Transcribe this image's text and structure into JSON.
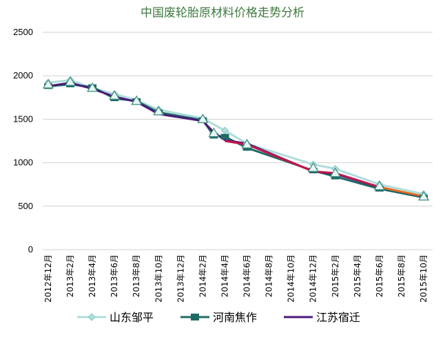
{
  "chart_data": {
    "type": "line",
    "title": "中国废轮胎原材料价格走势分析",
    "xlabel": "",
    "ylabel": "",
    "ylim": [
      0,
      2500
    ],
    "yticks": [
      0,
      500,
      1000,
      1500,
      2000,
      2500
    ],
    "grid": true,
    "legend_position": "bottom",
    "x_tick_labels": [
      "2012年12月",
      "2013年2月",
      "2013年4月",
      "2013年6月",
      "2013年8月",
      "2013年10月",
      "2013年12月",
      "2014年2月",
      "2014年4月",
      "2014年6月",
      "2014年8月",
      "2014年10月",
      "2014年12月",
      "2015年2月",
      "2015年4月",
      "2015年6月",
      "2015年8月",
      "2015年10月"
    ],
    "series": [
      {
        "name": "山东邹平",
        "color": "#b0dcdc",
        "marker": "diamond",
        "points": [
          {
            "m": 0,
            "y": 1920
          },
          {
            "m": 1,
            "y": 1950
          },
          {
            "m": 2,
            "y": 1860
          },
          {
            "m": 3,
            "y": 1790
          },
          {
            "m": 4,
            "y": 1720
          },
          {
            "m": 5,
            "y": 1610
          },
          {
            "m": 7,
            "y": 1510
          },
          {
            "m": 8,
            "y": 1370
          },
          {
            "m": 9,
            "y": 1220
          },
          {
            "m": 12,
            "y": 980
          },
          {
            "m": 13,
            "y": 930
          },
          {
            "m": 15,
            "y": 750
          },
          {
            "m": 17,
            "y": 640
          }
        ]
      },
      {
        "name": "河南焦作",
        "color": "#1f6b66",
        "marker": "square",
        "points": [
          {
            "m": 0,
            "y": 1880
          },
          {
            "m": 1,
            "y": 1900
          },
          {
            "m": 2,
            "y": 1870
          },
          {
            "m": 3,
            "y": 1740
          },
          {
            "m": 4,
            "y": 1710
          },
          {
            "m": 5,
            "y": 1580
          },
          {
            "m": 7,
            "y": 1490
          },
          {
            "m": 7.5,
            "y": 1310
          },
          {
            "m": 8,
            "y": 1300
          },
          {
            "m": 9,
            "y": 1170
          },
          {
            "m": 12,
            "y": 910
          },
          {
            "m": 13,
            "y": 840
          },
          {
            "m": 15,
            "y": 700
          },
          {
            "m": 17,
            "y": 600
          }
        ]
      },
      {
        "name": "江苏宿迁",
        "color": "#4b1a7a",
        "marker": "dash",
        "points": [
          {
            "m": 0,
            "y": 1880
          },
          {
            "m": 1,
            "y": 1920
          },
          {
            "m": 2,
            "y": 1850
          },
          {
            "m": 3,
            "y": 1760
          },
          {
            "m": 4,
            "y": 1700
          },
          {
            "m": 5,
            "y": 1560
          },
          {
            "m": 7,
            "y": 1480
          },
          {
            "m": 7.5,
            "y": 1350
          },
          {
            "m": 8,
            "y": 1260
          },
          {
            "m": 9,
            "y": 1220
          },
          {
            "m": 12,
            "y": 900
          },
          {
            "m": 13,
            "y": 870
          },
          {
            "m": 15,
            "y": 720
          },
          {
            "m": 17,
            "y": 610
          }
        ]
      }
    ],
    "overlay_segments": [
      {
        "color": "#c0184a",
        "from_m": 8,
        "to_m": 15,
        "points": [
          {
            "m": 8,
            "y": 1250
          },
          {
            "m": 9,
            "y": 1210
          },
          {
            "m": 12,
            "y": 900
          },
          {
            "m": 13,
            "y": 880
          },
          {
            "m": 15,
            "y": 720
          }
        ]
      },
      {
        "color": "#e07020",
        "from_m": 15,
        "to_m": 17,
        "points": [
          {
            "m": 15,
            "y": 720
          },
          {
            "m": 17,
            "y": 615
          }
        ]
      }
    ],
    "triangle_markers": [
      {
        "m": 0,
        "y": 1900
      },
      {
        "m": 1,
        "y": 1930
      },
      {
        "m": 2,
        "y": 1860
      },
      {
        "m": 3,
        "y": 1770
      },
      {
        "m": 4,
        "y": 1710
      },
      {
        "m": 5,
        "y": 1590
      },
      {
        "m": 7,
        "y": 1500
      },
      {
        "m": 7.5,
        "y": 1340
      },
      {
        "m": 9,
        "y": 1210
      },
      {
        "m": 12,
        "y": 940
      },
      {
        "m": 13,
        "y": 880
      },
      {
        "m": 15,
        "y": 730
      },
      {
        "m": 17,
        "y": 610
      }
    ]
  }
}
